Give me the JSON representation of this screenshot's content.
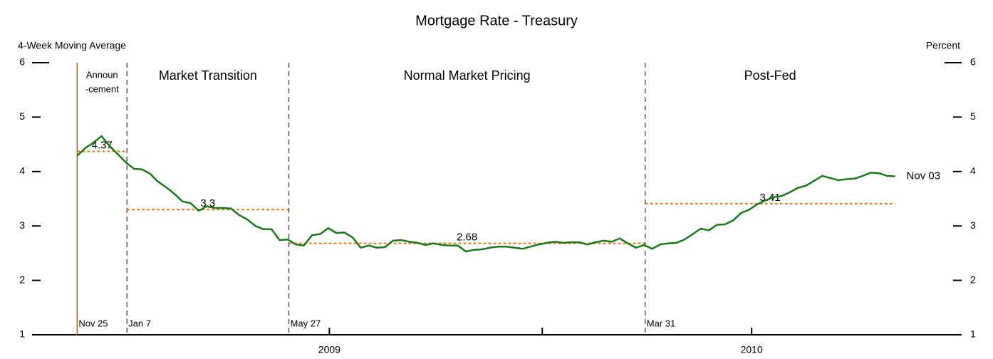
{
  "chart_data": {
    "type": "line",
    "title": "Mortgage Rate - Treasury",
    "y_label": "4-Week Moving Average",
    "y2_label": "Percent",
    "xlim": [
      "2008-10-17",
      "2011-01-01"
    ],
    "xticks": [
      {
        "value": "2009-07-01",
        "label": "2009"
      },
      {
        "value": "2010-07-01",
        "label": "2010"
      }
    ],
    "minor_xticks": [
      "2010-01-01"
    ],
    "ylim": [
      1,
      6
    ],
    "yticks": [
      1,
      2,
      3,
      4,
      5,
      6
    ],
    "y2lim": [
      1,
      6
    ],
    "y2ticks": [
      1,
      2,
      3,
      4,
      5,
      6
    ],
    "end_label": "Nov 03",
    "mean_color": "#e87722",
    "periods": [
      {
        "label": [
          "Announ",
          "-cement"
        ],
        "start": "2008-11-25",
        "start_label": "Nov 25",
        "mean": 4.37,
        "line_color": "#b5651d",
        "line_style": "solid"
      },
      {
        "label": [
          "Market Transition"
        ],
        "start": "2009-01-07",
        "start_label": "Jan 7",
        "mean": 3.3,
        "line_color": "#333333",
        "line_style": "dashed"
      },
      {
        "label": [
          "Normal Market Pricing"
        ],
        "start": "2009-05-27",
        "start_label": "May 27",
        "mean": 2.68,
        "line_color": "#333333",
        "line_style": "dashed"
      },
      {
        "label": [
          "Post-Fed"
        ],
        "start": "2010-03-31",
        "start_label": "Mar 31",
        "mean": 3.41,
        "line_color": "#333333",
        "line_style": "dashed"
      }
    ],
    "x": [
      "2008-11-25",
      "2008-12-02",
      "2008-12-09",
      "2008-12-16",
      "2008-12-23",
      "2008-12-30",
      "2009-01-06",
      "2009-01-13",
      "2009-01-20",
      "2009-01-27",
      "2009-02-03",
      "2009-02-10",
      "2009-02-17",
      "2009-02-24",
      "2009-03-03",
      "2009-03-10",
      "2009-03-17",
      "2009-03-24",
      "2009-03-31",
      "2009-04-07",
      "2009-04-14",
      "2009-04-21",
      "2009-04-28",
      "2009-05-05",
      "2009-05-12",
      "2009-05-19",
      "2009-05-26",
      "2009-06-02",
      "2009-06-09",
      "2009-06-16",
      "2009-06-23",
      "2009-06-30",
      "2009-07-07",
      "2009-07-14",
      "2009-07-21",
      "2009-07-28",
      "2009-08-04",
      "2009-08-11",
      "2009-08-18",
      "2009-08-25",
      "2009-09-01",
      "2009-09-08",
      "2009-09-15",
      "2009-09-22",
      "2009-09-29",
      "2009-10-06",
      "2009-10-13",
      "2009-10-20",
      "2009-10-27",
      "2009-11-03",
      "2009-11-10",
      "2009-11-17",
      "2009-11-24",
      "2009-12-01",
      "2009-12-08",
      "2009-12-15",
      "2009-12-22",
      "2009-12-29",
      "2010-01-05",
      "2010-01-12",
      "2010-01-19",
      "2010-01-26",
      "2010-02-02",
      "2010-02-09",
      "2010-02-16",
      "2010-02-23",
      "2010-03-02",
      "2010-03-09",
      "2010-03-16",
      "2010-03-23",
      "2010-03-30",
      "2010-04-06",
      "2010-04-13",
      "2010-04-20",
      "2010-04-27",
      "2010-05-04",
      "2010-05-11",
      "2010-05-18",
      "2010-05-25",
      "2010-06-01",
      "2010-06-08",
      "2010-06-15",
      "2010-06-22",
      "2010-06-29",
      "2010-07-06",
      "2010-07-13",
      "2010-07-20",
      "2010-07-27",
      "2010-08-03",
      "2010-08-10",
      "2010-08-17",
      "2010-08-24",
      "2010-08-31",
      "2010-09-07",
      "2010-09-14",
      "2010-09-21",
      "2010-09-28",
      "2010-10-05",
      "2010-10-12",
      "2010-10-19",
      "2010-10-26",
      "2010-11-02"
    ],
    "series": [
      {
        "color": "#1a7a1a",
        "values": [
          4.29,
          4.43,
          4.53,
          4.65,
          4.47,
          4.32,
          4.17,
          4.05,
          4.04,
          3.96,
          3.81,
          3.71,
          3.59,
          3.45,
          3.42,
          3.28,
          3.36,
          3.33,
          3.33,
          3.32,
          3.2,
          3.12,
          3.0,
          2.94,
          2.94,
          2.74,
          2.75,
          2.66,
          2.64,
          2.83,
          2.85,
          2.96,
          2.87,
          2.88,
          2.79,
          2.6,
          2.64,
          2.6,
          2.61,
          2.73,
          2.74,
          2.71,
          2.69,
          2.65,
          2.68,
          2.65,
          2.64,
          2.64,
          2.53,
          2.56,
          2.57,
          2.6,
          2.62,
          2.62,
          2.6,
          2.58,
          2.62,
          2.66,
          2.69,
          2.71,
          2.69,
          2.7,
          2.7,
          2.66,
          2.7,
          2.73,
          2.71,
          2.77,
          2.68,
          2.6,
          2.65,
          2.58,
          2.66,
          2.68,
          2.69,
          2.75,
          2.85,
          2.95,
          2.92,
          3.02,
          3.03,
          3.1,
          3.24,
          3.3,
          3.4,
          3.47,
          3.53,
          3.55,
          3.62,
          3.7,
          3.74,
          3.83,
          3.92,
          3.88,
          3.84,
          3.86,
          3.87,
          3.92,
          3.98,
          3.97,
          3.92,
          3.91
        ]
      }
    ]
  }
}
